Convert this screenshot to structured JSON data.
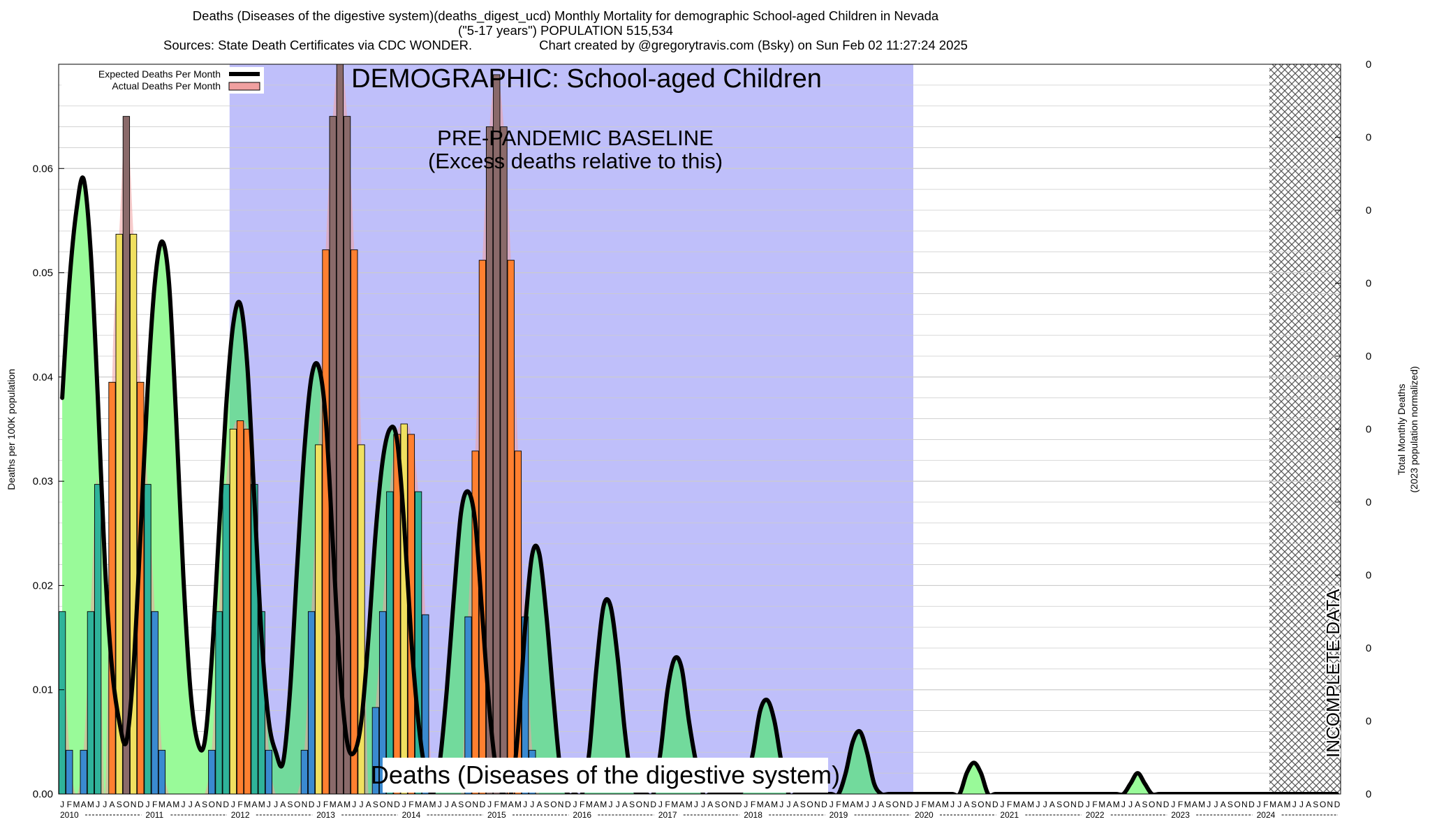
{
  "header": {
    "title_line1": "Deaths (Diseases of the digestive system)(deaths_digest_ucd) Monthly Mortality for demographic School-aged Children in Nevada",
    "title_line2": "(\"5-17 years\") POPULATION 515,534",
    "sources": "Sources: State Death Certificates via CDC WONDER.",
    "credit": "Chart created by @gregorytravis.com (Bsky) on Sun Feb 02 11:27:24 2025"
  },
  "annotations": {
    "demographic": "DEMOGRAPHIC: School-aged Children",
    "baseline_line1": "PRE-PANDEMIC BASELINE",
    "baseline_line2": "(Excess deaths relative to this)",
    "cause_label": "Deaths (Diseases of the digestive system)",
    "incomplete": "INCOMPLETE DATA"
  },
  "colors": {
    "baseline_region": "#bfbffa",
    "expected_fill": "#99fa99",
    "expected_fill_in_baseline": "#72da9c",
    "expected_line": "#000000",
    "actual_area": "#f0a0a0",
    "bar_low": "#3a8ad0",
    "bar_mid": "#2fb39a",
    "bar_high_a": "#f0e060",
    "bar_high_b": "#ff8030",
    "bar_peak": "#8a6a6a",
    "hatch": "#555555",
    "grid": "#cccccc"
  },
  "chart_data": {
    "type": "bar",
    "title": "Deaths (Diseases of the digestive system)(deaths_digest_ucd) Monthly Mortality for demographic School-aged Children in Nevada",
    "ylabel": "Deaths per 100K population",
    "y2label_line1": "Total Monthly Deaths",
    "y2label_line2": "(2023 population normalized)",
    "ylim": [
      0,
      0.07
    ],
    "y_ticks": [
      0.0,
      0.01,
      0.02,
      0.03,
      0.04,
      0.05,
      0.06
    ],
    "y_tick_labels": [
      "0.00",
      "0.01",
      "0.02",
      "0.03",
      "0.04",
      "0.05",
      "0.06"
    ],
    "y2_tick_labels": [
      "0",
      "0",
      "0",
      "0",
      "0",
      "0",
      "0",
      "0",
      "0",
      "0",
      "0"
    ],
    "x_start": "2010-01",
    "x_end": "2024-12",
    "years": [
      "2010",
      "2011",
      "2012",
      "2013",
      "2014",
      "2015",
      "2016",
      "2017",
      "2018",
      "2019",
      "2020",
      "2021",
      "2022",
      "2023",
      "2024"
    ],
    "month_letters": [
      "J",
      "F",
      "M",
      "A",
      "M",
      "J",
      "J",
      "A",
      "S",
      "O",
      "N",
      "D"
    ],
    "baseline_period": [
      "2012-01",
      "2019-12"
    ],
    "incomplete_period": [
      "2024-03",
      "2024-12"
    ],
    "grid": true,
    "legend_position": "top-left",
    "series": [
      {
        "name": "Expected Deaths Per Month",
        "style": "line",
        "values": [
          0.038,
          0.049,
          0.056,
          0.059,
          0.052,
          0.038,
          0.022,
          0.012,
          0.007,
          0.005,
          0.012,
          0.025,
          0.039,
          0.049,
          0.053,
          0.049,
          0.036,
          0.021,
          0.01,
          0.005,
          0.005,
          0.013,
          0.025,
          0.037,
          0.045,
          0.047,
          0.041,
          0.028,
          0.015,
          0.007,
          0.004,
          0.003,
          0.01,
          0.022,
          0.033,
          0.04,
          0.041,
          0.036,
          0.024,
          0.012,
          0.005,
          0.004,
          0.007,
          0.015,
          0.025,
          0.032,
          0.035,
          0.034,
          0.026,
          0.015,
          0.007,
          0.002,
          0.0,
          0.003,
          0.01,
          0.019,
          0.027,
          0.029,
          0.026,
          0.017,
          0.008,
          0.002,
          0.0,
          0.0,
          0.006,
          0.016,
          0.023,
          0.023,
          0.017,
          0.009,
          0.002,
          0.0,
          0.0,
          0.0,
          0.004,
          0.012,
          0.018,
          0.018,
          0.013,
          0.006,
          0.001,
          0.0,
          0.0,
          0.0,
          0.004,
          0.01,
          0.013,
          0.012,
          0.007,
          0.003,
          0.0,
          0.0,
          0.0,
          0.0,
          0.0,
          0.0,
          0.001,
          0.004,
          0.008,
          0.009,
          0.007,
          0.003,
          0.0,
          0.0,
          0.0,
          0.0,
          0.0,
          0.0,
          0.0,
          0.0,
          0.002,
          0.005,
          0.006,
          0.004,
          0.001,
          0.0,
          0.0,
          0.0,
          0.0,
          0.0,
          0.0,
          0.0,
          0.0,
          0.0,
          0.0,
          0.0,
          0.0,
          0.002,
          0.003,
          0.002,
          0.0,
          0.0,
          0.0,
          0.0,
          0.0,
          0.0,
          0.0,
          0.0,
          0.0,
          0.0,
          0.0,
          0.0,
          0.0,
          0.0,
          0.0,
          0.0,
          0.0,
          0.0,
          0.0,
          0.0,
          0.001,
          0.002,
          0.001,
          0.0,
          0.0,
          0.0,
          0.0,
          0.0,
          0.0,
          0.0,
          0.0,
          0.0,
          0.0,
          0.0,
          0.0,
          0.0,
          0.0,
          0.0,
          0.0,
          0.0,
          0.0,
          0.0,
          0.0,
          0.0,
          0.0,
          0.0,
          0.0,
          0.0,
          0.0,
          0.0
        ]
      },
      {
        "name": "Actual Deaths Per Month",
        "style": "bar",
        "values": [
          0.0175,
          0.0042,
          0.0,
          0.0042,
          0.0175,
          0.0297,
          0.0,
          0.0395,
          0.0537,
          0.065,
          0.0537,
          0.0395,
          0.0297,
          0.0175,
          0.0042,
          0.0,
          0.0,
          0.0,
          0.0,
          0.0,
          0.0,
          0.0042,
          0.0175,
          0.0297,
          0.035,
          0.0358,
          0.035,
          0.0297,
          0.0175,
          0.0042,
          0.0,
          0.0,
          0.0,
          0.0,
          0.0042,
          0.0175,
          0.0335,
          0.0522,
          0.065,
          0.071,
          0.065,
          0.0522,
          0.0335,
          0.0,
          0.0083,
          0.0175,
          0.029,
          0.0345,
          0.0355,
          0.0345,
          0.029,
          0.0172,
          0.0,
          0.0,
          0.0,
          0.0,
          0.0,
          0.017,
          0.0329,
          0.0512,
          0.064,
          0.069,
          0.064,
          0.0512,
          0.0329,
          0.017,
          0.0042,
          0.0,
          0.0,
          0.0,
          0.0,
          0.0,
          0.0,
          0.0,
          0.0,
          0.0,
          0.0,
          0.0,
          0.0,
          0.0,
          0.0,
          0.0,
          0.0,
          0.0,
          0.0,
          0.0,
          0.0,
          0.0,
          0.0,
          0.0,
          0.0,
          0.0,
          0.0,
          0.0,
          0.0,
          0.0,
          0.0,
          0.0,
          0.0,
          0.0,
          0.0,
          0.0,
          0.0,
          0.0,
          0.0,
          0.0,
          0.0,
          0.0,
          0.0,
          0.0,
          0.0,
          0.0,
          0.0,
          0.0,
          0.0,
          0.0,
          0.0,
          0.0,
          0.0,
          0.0,
          0.0,
          0.0,
          0.0,
          0.0,
          0.0,
          0.0,
          0.0,
          0.0,
          0.0,
          0.0,
          0.0,
          0.0,
          0.0,
          0.0,
          0.0,
          0.0,
          0.0,
          0.0,
          0.0,
          0.0,
          0.0,
          0.0,
          0.0,
          0.0,
          0.0,
          0.0,
          0.0,
          0.0,
          0.0,
          0.0,
          0.0,
          0.0,
          0.0,
          0.0,
          0.0,
          0.0,
          0.0,
          0.0,
          0.0,
          0.0,
          0.0,
          0.0,
          0.0,
          0.0,
          0.0,
          0.0,
          0.0,
          0.0,
          0.0,
          0.0,
          0.0,
          0.0,
          0.0,
          0.0,
          0.0,
          0.0,
          0.0,
          0.0,
          0.0,
          0.0
        ]
      }
    ]
  }
}
